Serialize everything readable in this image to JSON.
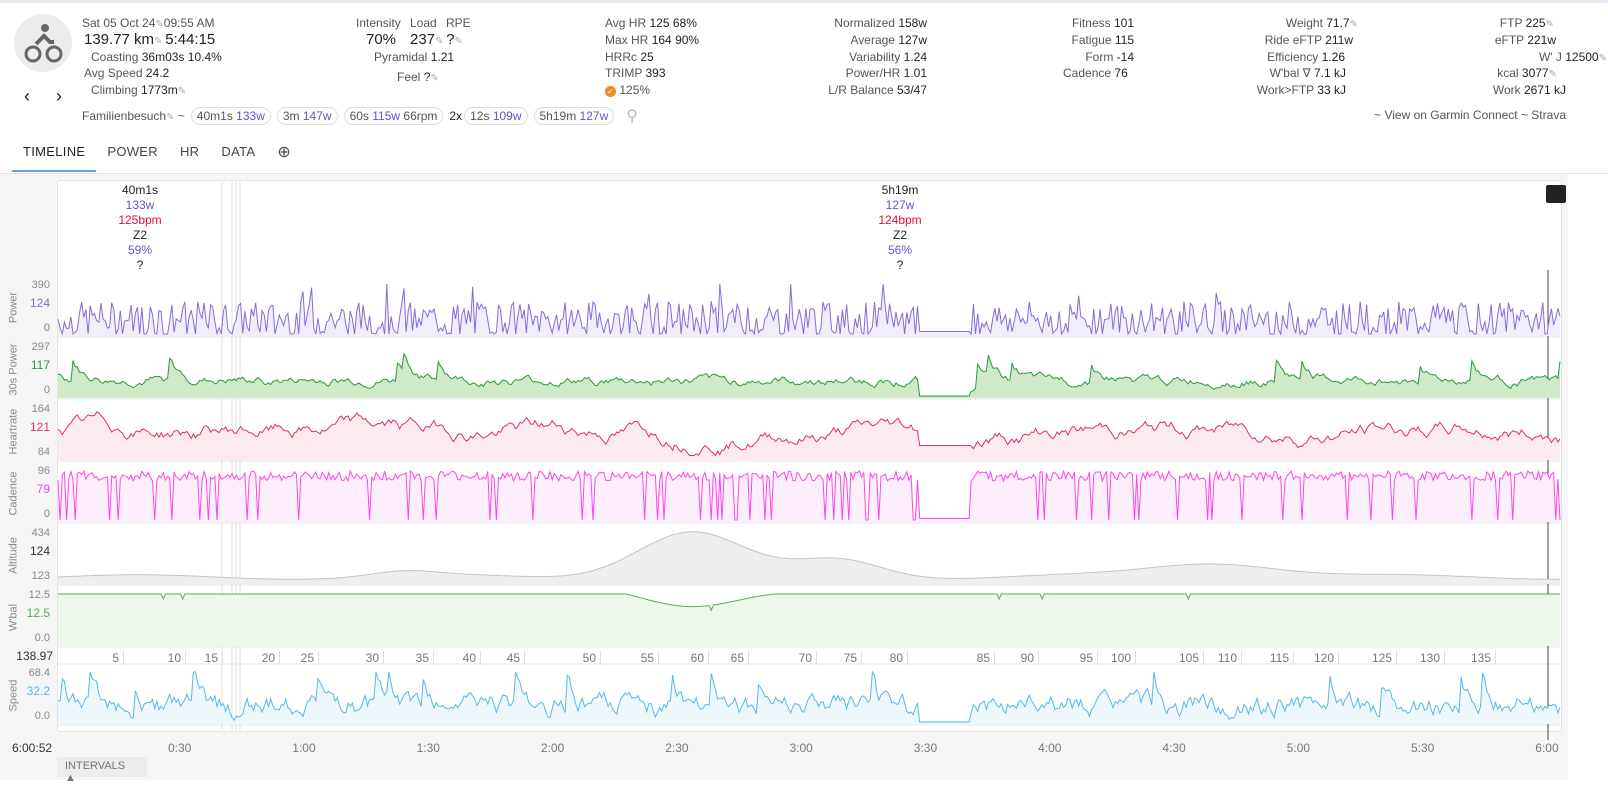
{
  "header": {
    "date": "Sat 05 Oct 24",
    "time": "09:55 AM",
    "distance": "139.77 km",
    "duration": "5:44:15",
    "coasting_label": "Coasting",
    "coasting_time": "36m03s",
    "coasting_pct": "10.4%",
    "avg_speed_label": "Avg Speed",
    "avg_speed": "24.2",
    "climbing_label": "Climbing",
    "climbing": "1773m",
    "intensity_label": "Intensity",
    "intensity": "70%",
    "load_label": "Load",
    "load": "237",
    "rpe_label": "RPE",
    "rpe": "?",
    "pyramidal_label": "Pyramidal",
    "pyramidal": "1.21",
    "feel_label": "Feel",
    "feel": "?",
    "avg_hr_label": "Avg HR",
    "avg_hr": "125",
    "avg_hr_pct": "68%",
    "max_hr_label": "Max HR",
    "max_hr": "164",
    "max_hr_pct": "90%",
    "hrrc_label": "HRRc",
    "hrrc": "25",
    "trimp_label": "TRIMP",
    "trimp": "393",
    "check_pct": "125%",
    "normalized_label": "Normalized",
    "normalized": "158w",
    "average_label": "Average",
    "average": "127w",
    "variability_label": "Variability",
    "variability": "1.24",
    "power_hr_label": "Power/HR",
    "power_hr": "1.01",
    "lr_label": "L/R Balance",
    "lr": "53/47",
    "fitness_label": "Fitness",
    "fitness": "101",
    "fatigue_label": "Fatigue",
    "fatigue": "115",
    "form_label": "Form",
    "form": "-14",
    "cadence_label": "Cadence",
    "cadence": "76",
    "weight_label": "Weight",
    "weight": "71.7",
    "ride_eftp_label": "Ride eFTP",
    "ride_eftp": "211w",
    "efficiency_label": "Efficiency",
    "efficiency": "1.26",
    "wbal_label": "W'bal ∇",
    "wbal": "7.1 kJ",
    "work_ftp_label": "Work>FTP",
    "work_ftp": "33 kJ",
    "ftp_label": "FTP",
    "ftp": "225",
    "eftp_label": "eFTP",
    "eftp": "221w",
    "wj_label": "W' J",
    "wj": "12500",
    "kcal_label": "kcal",
    "kcal": "3077",
    "work_label": "Work",
    "work": "2671 kJ",
    "links": "~ View on Garmin Connect ~ Strava",
    "name": "Familienbesuch",
    "tilde": "~",
    "twox": "2x"
  },
  "chips": [
    {
      "a": "40m1s",
      "w": "133w",
      "b": ""
    },
    {
      "a": "3m",
      "w": "147w",
      "b": ""
    },
    {
      "a": "60s",
      "w": "115w",
      "b": "66rpm"
    },
    {
      "a": "12s",
      "w": "109w",
      "b": ""
    },
    {
      "a": "5h19m",
      "w": "127w",
      "b": ""
    }
  ],
  "tabs": [
    "TIMELINE",
    "POWER",
    "HR",
    "DATA"
  ],
  "intervals_summary": [
    {
      "dur": "40m1s",
      "power": "133w",
      "hr": "125bpm",
      "zone": "Z2",
      "pct": "59%",
      "q": "?"
    },
    {
      "dur": "5h19m",
      "power": "127w",
      "hr": "124bpm",
      "zone": "Z2",
      "pct": "56%",
      "q": "?"
    }
  ],
  "rows": [
    {
      "label": "Power",
      "max": "390",
      "mid": "124",
      "min": "0",
      "color": "#8a6ad8"
    },
    {
      "label": "30s Power",
      "max": "297",
      "mid": "117",
      "min": "0",
      "color": "#2a9a3a"
    },
    {
      "label": "Heartrate",
      "max": "164",
      "mid": "121",
      "min": "84",
      "color": "#e03060"
    },
    {
      "label": "Cadence",
      "max": "96",
      "mid": "79",
      "min": "0",
      "color": "#ff44ee"
    },
    {
      "label": "Altitude",
      "max": "434",
      "mid": "124",
      "min": "123",
      "color": "#bbbbbb"
    },
    {
      "label": "W'bal",
      "max": "12.5",
      "mid": "12.5",
      "min": "0.0",
      "color": "#55b055"
    },
    {
      "label": "Speed",
      "max": "68.4",
      "mid": "32.2",
      "min": "0.0",
      "color": "#55b8ea"
    }
  ],
  "distance_total": "138.97",
  "distance_ticks": [
    "5",
    "10",
    "15",
    "20",
    "25",
    "30",
    "35",
    "40",
    "45",
    "50",
    "55",
    "60",
    "65",
    "70",
    "75",
    "80",
    "85",
    "90",
    "95",
    "100",
    "105",
    "110",
    "115",
    "120",
    "125",
    "130",
    "135"
  ],
  "time_total": "6:00:52",
  "time_ticks": [
    "0:30",
    "1:00",
    "1:30",
    "2:00",
    "2:30",
    "3:00",
    "3:30",
    "4:00",
    "4:30",
    "5:00",
    "5:30",
    "6:00"
  ],
  "intervals_button": "INTERVALS ▲"
}
